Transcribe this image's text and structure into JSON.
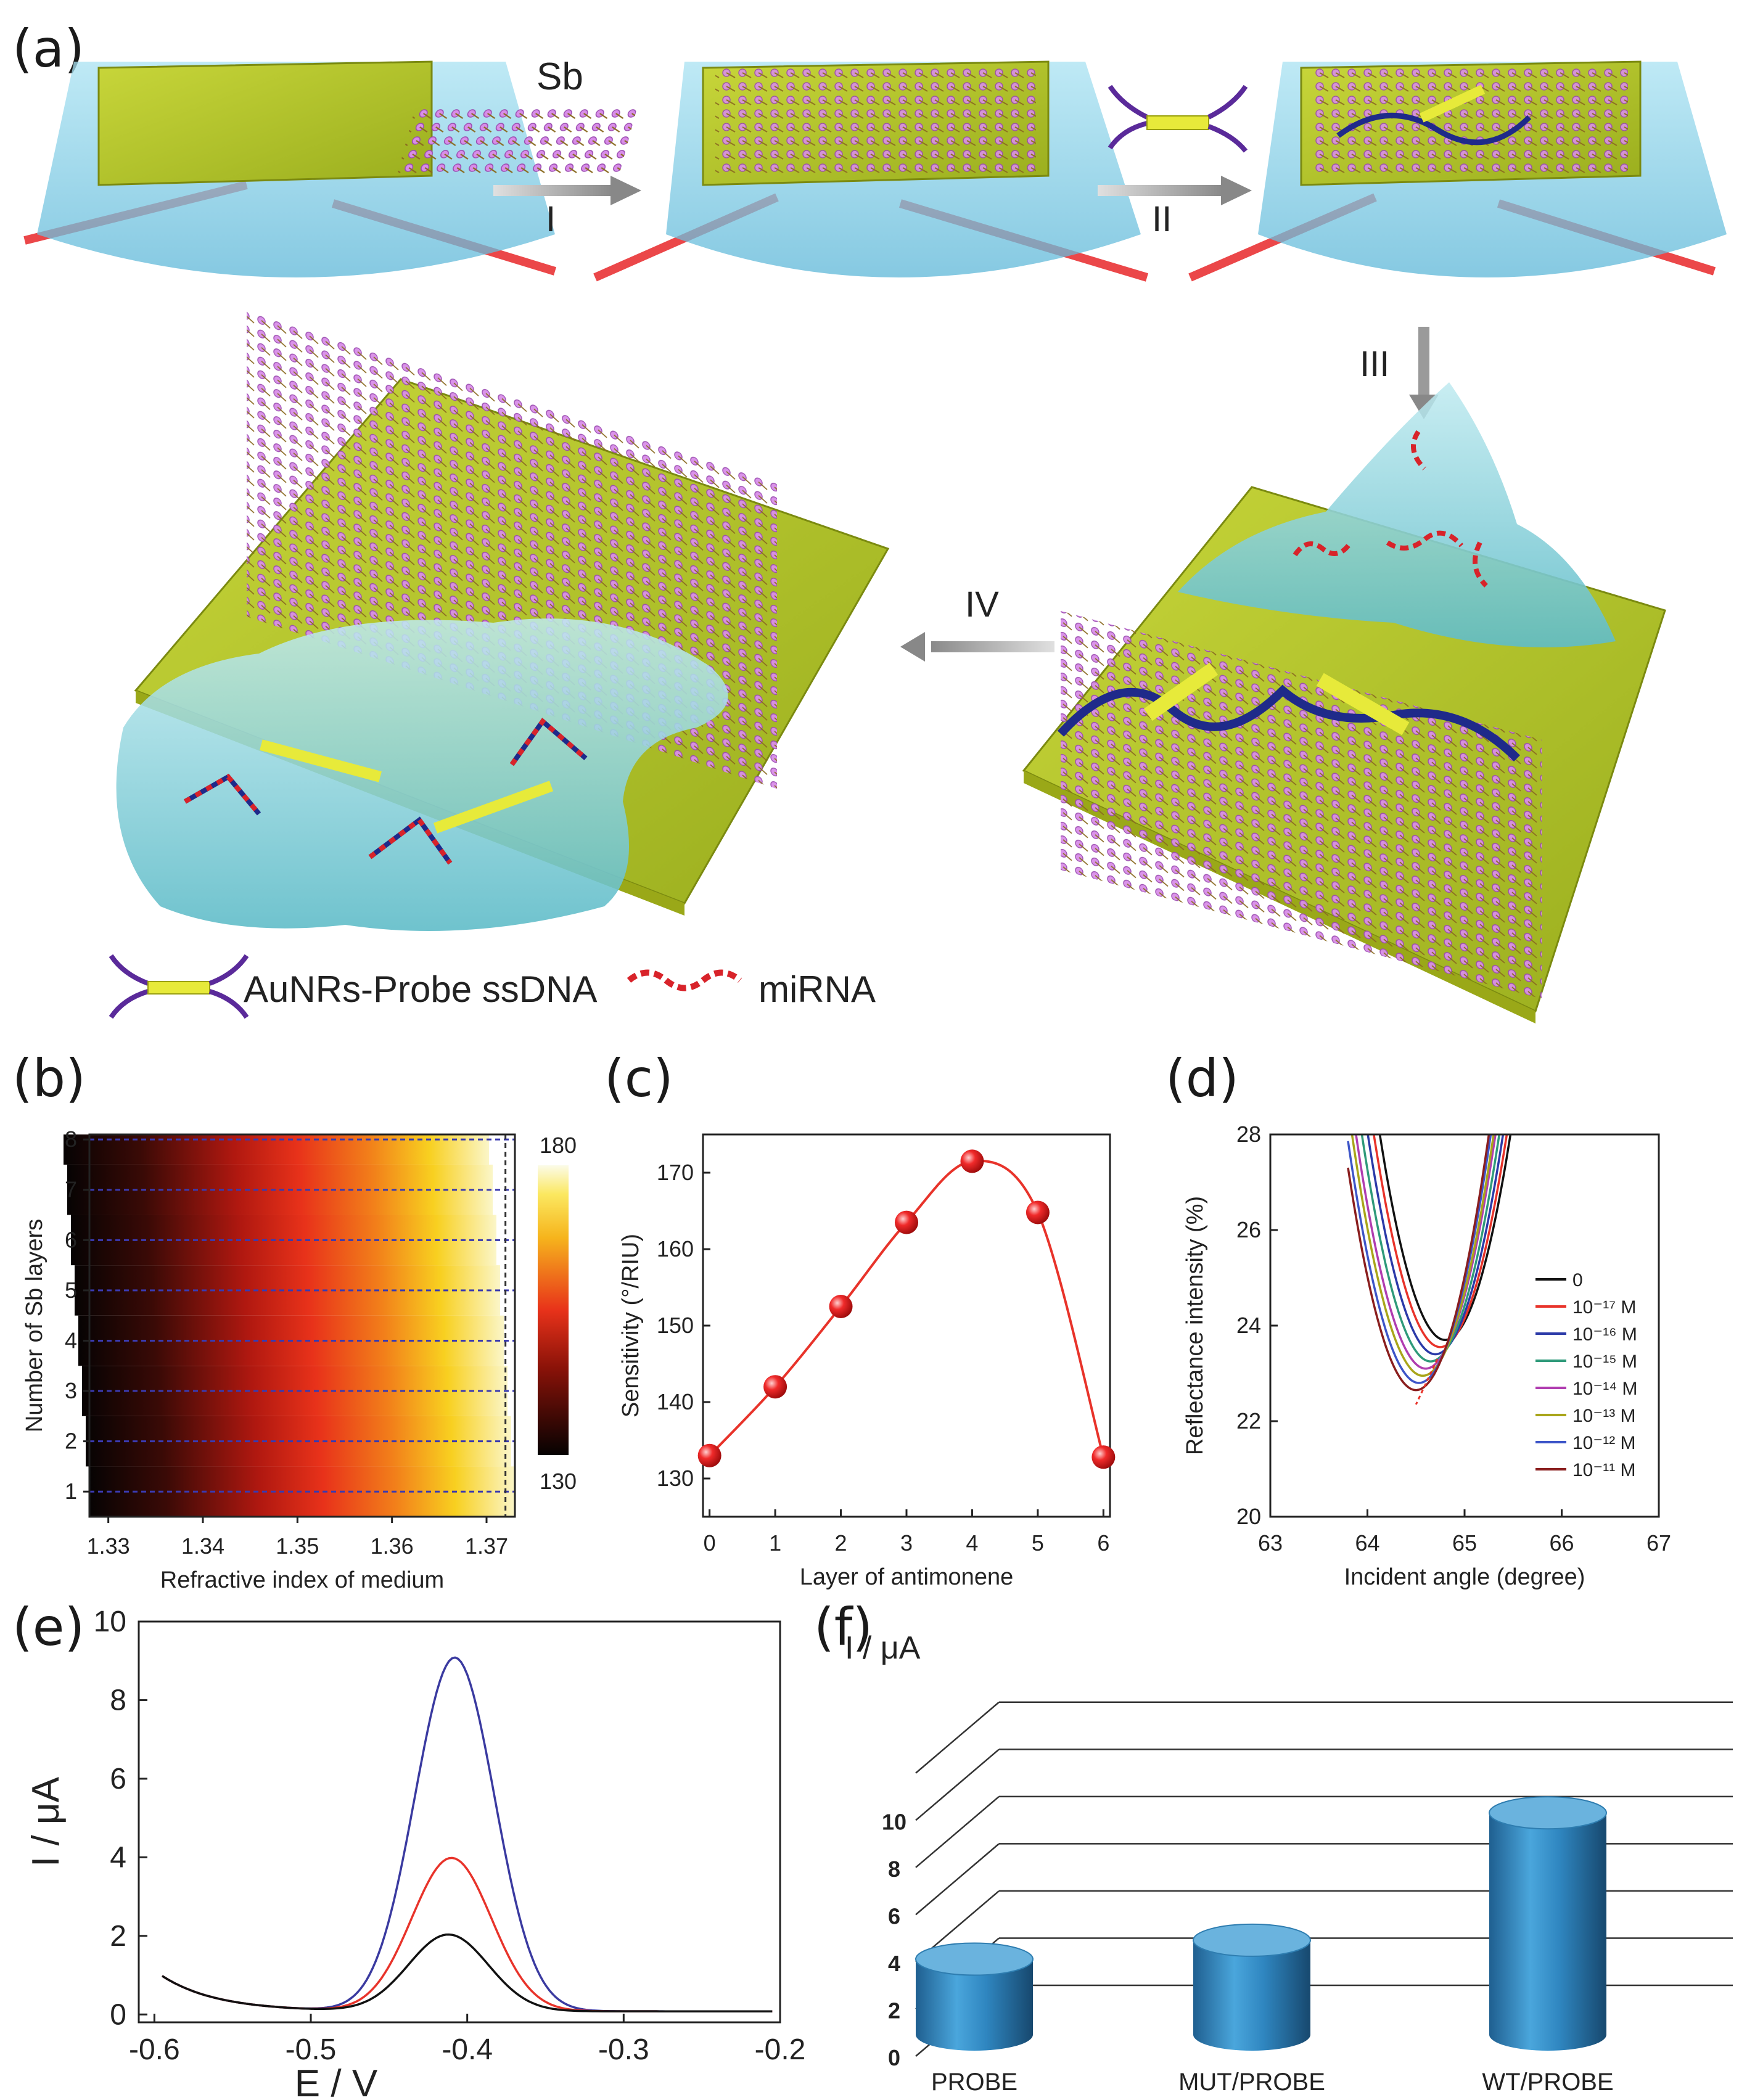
{
  "panel_labels": {
    "a": "(a)",
    "b": "(b)",
    "c": "(c)",
    "d": "(d)",
    "e": "(e)",
    "f": "(f)"
  },
  "schematic": {
    "sb_label": "Sb",
    "steps": [
      "I",
      "II",
      "III",
      "IV"
    ],
    "legend_probe": "AuNRs-Probe ssDNA",
    "legend_mirna": "miRNA",
    "colors": {
      "gold": "#b9c92a",
      "prism": "#8fd3ea",
      "sb": "#d58ee8",
      "dna": "#1f2a8a",
      "mirna": "#d8232a",
      "laser": "#e8282a",
      "liquid": "#7fd0d8"
    }
  },
  "chart_data": [
    {
      "id": "b",
      "type": "heatmap",
      "xlabel": "Refractive index of medium",
      "ylabel": "Number of Sb layers",
      "x_ticks": [
        "1.33",
        "1.34",
        "1.35",
        "1.36",
        "1.37"
      ],
      "y_ticks": [
        "1",
        "2",
        "3",
        "4",
        "5",
        "6",
        "7",
        "8"
      ],
      "xlim": [
        1.328,
        1.373
      ],
      "ylim": [
        0.5,
        8.1
      ],
      "colorbar": {
        "min": 130,
        "max": 180,
        "min_label": "130",
        "max_label": "180"
      },
      "gridlines": "dashed at each layer"
    },
    {
      "id": "c",
      "type": "line",
      "xlabel": "Layer of antimonene",
      "ylabel": "Sensitivity (°/RIU)",
      "x": [
        0,
        1,
        2,
        3,
        4,
        5,
        6
      ],
      "values": [
        133,
        142,
        152.5,
        163.5,
        171.5,
        164.8,
        132.8
      ],
      "x_ticks": [
        "0",
        "1",
        "2",
        "3",
        "4",
        "5",
        "6"
      ],
      "y_ticks": [
        "130",
        "140",
        "150",
        "160",
        "170"
      ],
      "xlim": [
        -0.1,
        6.1
      ],
      "ylim": [
        125,
        175
      ]
    },
    {
      "id": "d",
      "type": "line",
      "xlabel": "Incident angle (degree)",
      "ylabel": "Reflectance intensity (%)",
      "x_ticks": [
        "63",
        "64",
        "65",
        "66",
        "67"
      ],
      "y_ticks": [
        "20",
        "22",
        "24",
        "26",
        "28"
      ],
      "xlim": [
        63,
        67
      ],
      "ylim": [
        20,
        28
      ],
      "series": [
        {
          "name": "0",
          "min_x": 64.8,
          "min_y": 23.7,
          "color": "#111111"
        },
        {
          "name": "10⁻¹⁷ M",
          "min_x": 64.75,
          "min_y": 23.55,
          "color": "#e8332a"
        },
        {
          "name": "10⁻¹⁶ M",
          "min_x": 64.7,
          "min_y": 23.4,
          "color": "#2b3aa8"
        },
        {
          "name": "10⁻¹⁵ M",
          "min_x": 64.65,
          "min_y": 23.25,
          "color": "#2f9a7a"
        },
        {
          "name": "10⁻¹⁴ M",
          "min_x": 64.6,
          "min_y": 23.1,
          "color": "#b03db0"
        },
        {
          "name": "10⁻¹³ M",
          "min_x": 64.57,
          "min_y": 22.95,
          "color": "#a9a51a"
        },
        {
          "name": "10⁻¹² M",
          "min_x": 64.53,
          "min_y": 22.8,
          "color": "#3d55c8"
        },
        {
          "name": "10⁻¹¹ M",
          "min_x": 64.5,
          "min_y": 22.65,
          "color": "#8a1e1e"
        }
      ]
    },
    {
      "id": "e",
      "type": "line",
      "xlabel": "E / V",
      "ylabel": "I / μA",
      "x_ticks": [
        "-0.6",
        "-0.5",
        "-0.4",
        "-0.3",
        "-0.2"
      ],
      "y_ticks": [
        "0",
        "2",
        "4",
        "6",
        "8",
        "10"
      ],
      "xlim": [
        -0.61,
        -0.2
      ],
      "ylim": [
        -0.2,
        10
      ],
      "series": [
        {
          "peak_x": -0.408,
          "peak_y": 9.0,
          "color": "#3a3aa0"
        },
        {
          "peak_x": -0.41,
          "peak_y": 3.9,
          "color": "#e8332a"
        },
        {
          "peak_x": -0.412,
          "peak_y": 1.95,
          "color": "#111111"
        }
      ]
    },
    {
      "id": "f",
      "type": "bar",
      "ylabel": "I / μA",
      "categories": [
        "PROBE",
        "MUT/PROBE",
        "WT/PROBE"
      ],
      "values": [
        3.2,
        4.0,
        9.4
      ],
      "y_ticks": [
        "0",
        "2",
        "4",
        "6",
        "8",
        "10"
      ],
      "ylim": [
        0,
        12
      ],
      "bar_color": "#2f86c0"
    }
  ]
}
